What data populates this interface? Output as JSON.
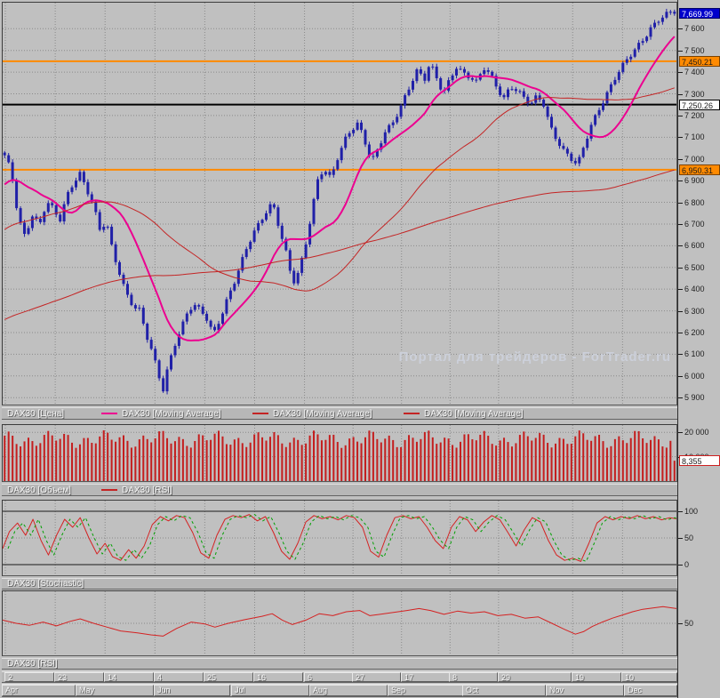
{
  "app": {
    "watermark": "Портал для трейдеров - ForTrader.ru",
    "bg": "#c0c0c0",
    "grid_color": "#8a8a8a"
  },
  "panels": {
    "price": {
      "legend": [
        {
          "label": "DAX30 [Цена]",
          "swatch": null
        },
        {
          "label": "DAX30 [Moving Average]",
          "swatch": "#ec0090"
        },
        {
          "label": "DAX30 [Moving Average]",
          "swatch": "#c42424"
        },
        {
          "label": "DAX30 [Moving Average]",
          "swatch": "#c42424"
        }
      ]
    },
    "volume": {
      "legend": [
        {
          "label": "DAX30 [Объем]",
          "swatch": null
        },
        {
          "label": "DAX30 [RSI]",
          "swatch": "#c42424"
        }
      ]
    },
    "stochastic": {
      "label": "DAX30 [Stochastic]"
    },
    "rsi": {
      "label": "DAX30 [RSI]"
    }
  },
  "chart_data": {
    "type": "candlestick+indicators",
    "instrument": "DAX30",
    "price": {
      "ylim": [
        5868,
        7720
      ],
      "candle_color": "#2020a8",
      "n_candles": 170,
      "y_ticks": [
        [
          7600,
          "7 600"
        ],
        [
          7500,
          "7 500"
        ],
        [
          7400,
          "7 400"
        ],
        [
          7300,
          "7 300"
        ],
        [
          7200,
          "7 200"
        ],
        [
          7100,
          "7 100"
        ],
        [
          7000,
          "7 000"
        ],
        [
          6900,
          "6 900"
        ],
        [
          6800,
          "6 800"
        ],
        [
          6700,
          "6 700"
        ],
        [
          6600,
          "6 600"
        ],
        [
          6500,
          "6 500"
        ],
        [
          6400,
          "6 400"
        ],
        [
          6300,
          "6 300"
        ],
        [
          6200,
          "6 200"
        ],
        [
          6100,
          "6 100"
        ],
        [
          6000,
          "6 000"
        ],
        [
          5900,
          "5 900"
        ]
      ],
      "flags": [
        {
          "text": "7,669.99",
          "value": 7669.99,
          "bg": "#0000cc",
          "fg": "#ffffff",
          "border": "#000066"
        },
        {
          "text": "7,450.21",
          "value": 7450.21,
          "bg": "#ff8a00",
          "fg": "#1a1a1a",
          "border": "#7a4200"
        },
        {
          "text": "7,250.26",
          "value": 7250.26,
          "bg": "#ffffff",
          "fg": "#1a1a1a",
          "border": "#000000"
        },
        {
          "text": "6,950.31",
          "value": 6950.31,
          "bg": "#ff8a00",
          "fg": "#1a1a1a",
          "border": "#7a4200"
        }
      ],
      "levels": [
        {
          "value": 7450.21,
          "color": "#ff8a00",
          "width": 2
        },
        {
          "value": 7250.26,
          "color": "#000000",
          "width": 2
        },
        {
          "value": 6950.31,
          "color": "#ff8a00",
          "width": 2
        }
      ],
      "close_keypoints": [
        [
          0.0,
          7005
        ],
        [
          0.006,
          6960
        ],
        [
          0.012,
          6890
        ],
        [
          0.02,
          6730
        ],
        [
          0.03,
          6650
        ],
        [
          0.042,
          6760
        ],
        [
          0.052,
          6700
        ],
        [
          0.063,
          6800
        ],
        [
          0.072,
          6760
        ],
        [
          0.082,
          6700
        ],
        [
          0.092,
          6820
        ],
        [
          0.103,
          6900
        ],
        [
          0.112,
          6950
        ],
        [
          0.122,
          6870
        ],
        [
          0.132,
          6790
        ],
        [
          0.142,
          6660
        ],
        [
          0.152,
          6700
        ],
        [
          0.162,
          6560
        ],
        [
          0.172,
          6480
        ],
        [
          0.182,
          6390
        ],
        [
          0.192,
          6330
        ],
        [
          0.202,
          6300
        ],
        [
          0.21,
          6190
        ],
        [
          0.218,
          6120
        ],
        [
          0.227,
          6030
        ],
        [
          0.236,
          5930
        ],
        [
          0.243,
          6040
        ],
        [
          0.252,
          6140
        ],
        [
          0.262,
          6220
        ],
        [
          0.272,
          6280
        ],
        [
          0.282,
          6320
        ],
        [
          0.292,
          6290
        ],
        [
          0.302,
          6260
        ],
        [
          0.312,
          6200
        ],
        [
          0.322,
          6280
        ],
        [
          0.332,
          6360
        ],
        [
          0.342,
          6420
        ],
        [
          0.352,
          6500
        ],
        [
          0.362,
          6580
        ],
        [
          0.372,
          6660
        ],
        [
          0.382,
          6720
        ],
        [
          0.392,
          6780
        ],
        [
          0.4,
          6810
        ],
        [
          0.41,
          6680
        ],
        [
          0.42,
          6560
        ],
        [
          0.43,
          6410
        ],
        [
          0.44,
          6480
        ],
        [
          0.45,
          6620
        ],
        [
          0.46,
          6800
        ],
        [
          0.468,
          6920
        ],
        [
          0.477,
          6960
        ],
        [
          0.487,
          6900
        ],
        [
          0.497,
          6990
        ],
        [
          0.508,
          7080
        ],
        [
          0.518,
          7140
        ],
        [
          0.528,
          7180
        ],
        [
          0.538,
          7090
        ],
        [
          0.548,
          6990
        ],
        [
          0.558,
          7040
        ],
        [
          0.568,
          7110
        ],
        [
          0.578,
          7150
        ],
        [
          0.588,
          7220
        ],
        [
          0.598,
          7300
        ],
        [
          0.608,
          7370
        ],
        [
          0.617,
          7420
        ],
        [
          0.626,
          7350
        ],
        [
          0.635,
          7430
        ],
        [
          0.645,
          7360
        ],
        [
          0.655,
          7300
        ],
        [
          0.665,
          7380
        ],
        [
          0.675,
          7440
        ],
        [
          0.685,
          7400
        ],
        [
          0.695,
          7370
        ],
        [
          0.705,
          7340
        ],
        [
          0.715,
          7410
        ],
        [
          0.725,
          7390
        ],
        [
          0.735,
          7340
        ],
        [
          0.745,
          7290
        ],
        [
          0.755,
          7340
        ],
        [
          0.765,
          7310
        ],
        [
          0.775,
          7270
        ],
        [
          0.785,
          7240
        ],
        [
          0.795,
          7290
        ],
        [
          0.805,
          7260
        ],
        [
          0.815,
          7160
        ],
        [
          0.825,
          7090
        ],
        [
          0.835,
          7030
        ],
        [
          0.845,
          6990
        ],
        [
          0.855,
          6960
        ],
        [
          0.865,
          7060
        ],
        [
          0.875,
          7160
        ],
        [
          0.885,
          7230
        ],
        [
          0.895,
          7280
        ],
        [
          0.905,
          7330
        ],
        [
          0.915,
          7380
        ],
        [
          0.925,
          7430
        ],
        [
          0.935,
          7480
        ],
        [
          0.945,
          7530
        ],
        [
          0.955,
          7570
        ],
        [
          0.965,
          7610
        ],
        [
          0.975,
          7630
        ],
        [
          0.985,
          7650
        ],
        [
          1.0,
          7672
        ]
      ],
      "history_keypoints": [
        [
          -0.45,
          5650
        ],
        [
          -0.32,
          5950
        ],
        [
          -0.2,
          6250
        ],
        [
          -0.1,
          6550
        ],
        [
          -0.04,
          6800
        ],
        [
          -0.005,
          6980
        ]
      ],
      "noise": {
        "a1": 10,
        "f1": 1.7,
        "a2": 14,
        "f2": 0.53,
        "wick_base": 5,
        "wick_amp": 9
      },
      "moving_averages": [
        {
          "window": 15,
          "color": "#ec0090",
          "width": 2
        },
        {
          "window": 50,
          "color": "#c42424",
          "width": 1
        },
        {
          "window": 150,
          "color": "#c42424",
          "width": 1
        }
      ]
    },
    "volume": {
      "ylim": [
        0,
        23000
      ],
      "y_ticks": [
        [
          20000,
          "20 000"
        ],
        [
          10000,
          "10 000"
        ]
      ],
      "bars": {
        "base": 17200,
        "a1": 2200,
        "f1": 1.31,
        "a2": 1600,
        "f2": 0.47,
        "min": 13200,
        "max": 21200,
        "last": 8355,
        "color": "#c41e1e",
        "width": 2
      },
      "flag": {
        "text": "8,355",
        "value": 8355,
        "bg": "#ffffff",
        "fg": "#1a1a1a",
        "border": "#cc2020"
      }
    },
    "stochastic": {
      "ylim": [
        0,
        100
      ],
      "y_ticks": [
        [
          100,
          "100"
        ],
        [
          50,
          "50"
        ],
        [
          0,
          "0"
        ]
      ],
      "k_color": "#d42222",
      "d_color": "#00a000",
      "keypoints": [
        [
          0.0,
          30
        ],
        [
          0.01,
          62
        ],
        [
          0.022,
          78
        ],
        [
          0.034,
          55
        ],
        [
          0.045,
          85
        ],
        [
          0.057,
          45
        ],
        [
          0.068,
          18
        ],
        [
          0.08,
          55
        ],
        [
          0.092,
          85
        ],
        [
          0.104,
          70
        ],
        [
          0.115,
          88
        ],
        [
          0.128,
          50
        ],
        [
          0.14,
          20
        ],
        [
          0.152,
          40
        ],
        [
          0.163,
          15
        ],
        [
          0.175,
          8
        ],
        [
          0.187,
          28
        ],
        [
          0.198,
          12
        ],
        [
          0.21,
          35
        ],
        [
          0.222,
          75
        ],
        [
          0.234,
          90
        ],
        [
          0.246,
          82
        ],
        [
          0.258,
          92
        ],
        [
          0.27,
          88
        ],
        [
          0.282,
          60
        ],
        [
          0.294,
          22
        ],
        [
          0.306,
          12
        ],
        [
          0.318,
          55
        ],
        [
          0.33,
          85
        ],
        [
          0.342,
          92
        ],
        [
          0.354,
          88
        ],
        [
          0.366,
          94
        ],
        [
          0.378,
          82
        ],
        [
          0.39,
          90
        ],
        [
          0.402,
          60
        ],
        [
          0.414,
          25
        ],
        [
          0.426,
          10
        ],
        [
          0.438,
          40
        ],
        [
          0.45,
          80
        ],
        [
          0.462,
          92
        ],
        [
          0.474,
          86
        ],
        [
          0.486,
          90
        ],
        [
          0.498,
          84
        ],
        [
          0.51,
          92
        ],
        [
          0.522,
          88
        ],
        [
          0.534,
          70
        ],
        [
          0.546,
          25
        ],
        [
          0.558,
          14
        ],
        [
          0.57,
          55
        ],
        [
          0.582,
          88
        ],
        [
          0.594,
          92
        ],
        [
          0.606,
          86
        ],
        [
          0.618,
          90
        ],
        [
          0.63,
          70
        ],
        [
          0.642,
          45
        ],
        [
          0.654,
          30
        ],
        [
          0.666,
          70
        ],
        [
          0.678,
          90
        ],
        [
          0.69,
          84
        ],
        [
          0.702,
          62
        ],
        [
          0.714,
          80
        ],
        [
          0.726,
          92
        ],
        [
          0.738,
          84
        ],
        [
          0.75,
          60
        ],
        [
          0.762,
          35
        ],
        [
          0.774,
          65
        ],
        [
          0.786,
          88
        ],
        [
          0.798,
          80
        ],
        [
          0.81,
          45
        ],
        [
          0.822,
          18
        ],
        [
          0.834,
          8
        ],
        [
          0.846,
          12
        ],
        [
          0.858,
          6
        ],
        [
          0.87,
          40
        ],
        [
          0.882,
          78
        ],
        [
          0.894,
          90
        ],
        [
          0.906,
          84
        ],
        [
          0.918,
          90
        ],
        [
          0.93,
          86
        ],
        [
          0.942,
          92
        ],
        [
          0.954,
          86
        ],
        [
          0.966,
          90
        ],
        [
          0.978,
          84
        ],
        [
          0.99,
          88
        ],
        [
          1.0,
          86
        ]
      ]
    },
    "rsi": {
      "ylim": [
        0,
        100
      ],
      "y_ticks": [
        [
          50,
          "50"
        ]
      ],
      "color": "#d42222",
      "keypoints": [
        [
          0.0,
          55
        ],
        [
          0.02,
          50
        ],
        [
          0.04,
          47
        ],
        [
          0.06,
          52
        ],
        [
          0.08,
          46
        ],
        [
          0.1,
          53
        ],
        [
          0.115,
          57
        ],
        [
          0.135,
          50
        ],
        [
          0.155,
          44
        ],
        [
          0.175,
          38
        ],
        [
          0.2,
          35
        ],
        [
          0.22,
          32
        ],
        [
          0.238,
          30
        ],
        [
          0.258,
          42
        ],
        [
          0.28,
          52
        ],
        [
          0.3,
          49
        ],
        [
          0.315,
          44
        ],
        [
          0.335,
          50
        ],
        [
          0.36,
          56
        ],
        [
          0.385,
          61
        ],
        [
          0.4,
          65
        ],
        [
          0.415,
          55
        ],
        [
          0.43,
          48
        ],
        [
          0.45,
          55
        ],
        [
          0.47,
          65
        ],
        [
          0.49,
          62
        ],
        [
          0.51,
          68
        ],
        [
          0.53,
          70
        ],
        [
          0.545,
          62
        ],
        [
          0.56,
          64
        ],
        [
          0.58,
          67
        ],
        [
          0.6,
          70
        ],
        [
          0.618,
          73
        ],
        [
          0.635,
          70
        ],
        [
          0.655,
          64
        ],
        [
          0.675,
          69
        ],
        [
          0.695,
          66
        ],
        [
          0.715,
          68
        ],
        [
          0.735,
          62
        ],
        [
          0.755,
          64
        ],
        [
          0.775,
          58
        ],
        [
          0.795,
          60
        ],
        [
          0.815,
          50
        ],
        [
          0.835,
          40
        ],
        [
          0.85,
          33
        ],
        [
          0.862,
          37
        ],
        [
          0.875,
          45
        ],
        [
          0.89,
          52
        ],
        [
          0.905,
          58
        ],
        [
          0.92,
          63
        ],
        [
          0.935,
          68
        ],
        [
          0.95,
          72
        ],
        [
          0.965,
          74
        ],
        [
          0.98,
          76
        ],
        [
          1.0,
          73
        ]
      ]
    },
    "x_axis": {
      "date_ticks": [
        [
          0.004,
          "2"
        ],
        [
          0.078,
          "23"
        ],
        [
          0.152,
          "14"
        ],
        [
          0.226,
          "4"
        ],
        [
          0.3,
          "25"
        ],
        [
          0.374,
          "16"
        ],
        [
          0.448,
          "6"
        ],
        [
          0.52,
          "27"
        ],
        [
          0.592,
          "17"
        ],
        [
          0.664,
          "8"
        ],
        [
          0.736,
          "29"
        ],
        [
          0.846,
          "19"
        ],
        [
          0.92,
          "10"
        ]
      ],
      "months": [
        [
          0.0,
          "Apr"
        ],
        [
          0.11,
          "May"
        ],
        [
          0.226,
          "Jun"
        ],
        [
          0.34,
          "Jul"
        ],
        [
          0.456,
          "Aug"
        ],
        [
          0.572,
          "Sep"
        ],
        [
          0.684,
          "Oct"
        ],
        [
          0.808,
          "Nov"
        ],
        [
          0.924,
          "Dec"
        ]
      ]
    }
  }
}
